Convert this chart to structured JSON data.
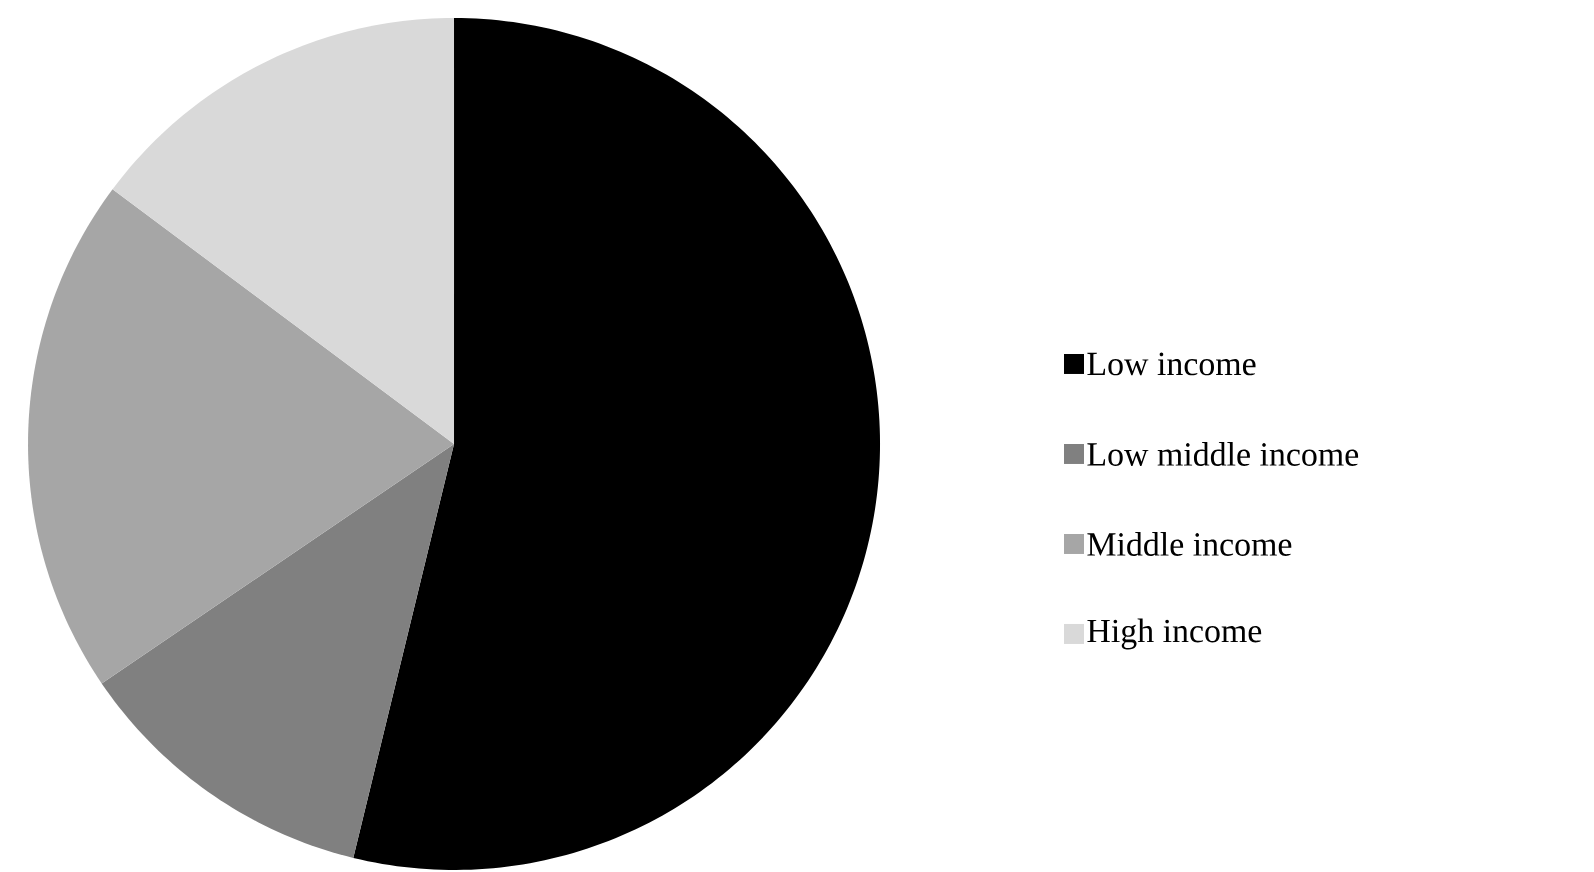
{
  "chart_data": {
    "type": "pie",
    "categories": [
      "Low income",
      "Low middle income",
      "Middle income",
      "High income"
    ],
    "values": [
      53.8,
      11.7,
      19.7,
      14.8
    ],
    "colors": [
      "#000000",
      "#808080",
      "#a6a6a6",
      "#d9d9d9"
    ],
    "legend": "right"
  }
}
